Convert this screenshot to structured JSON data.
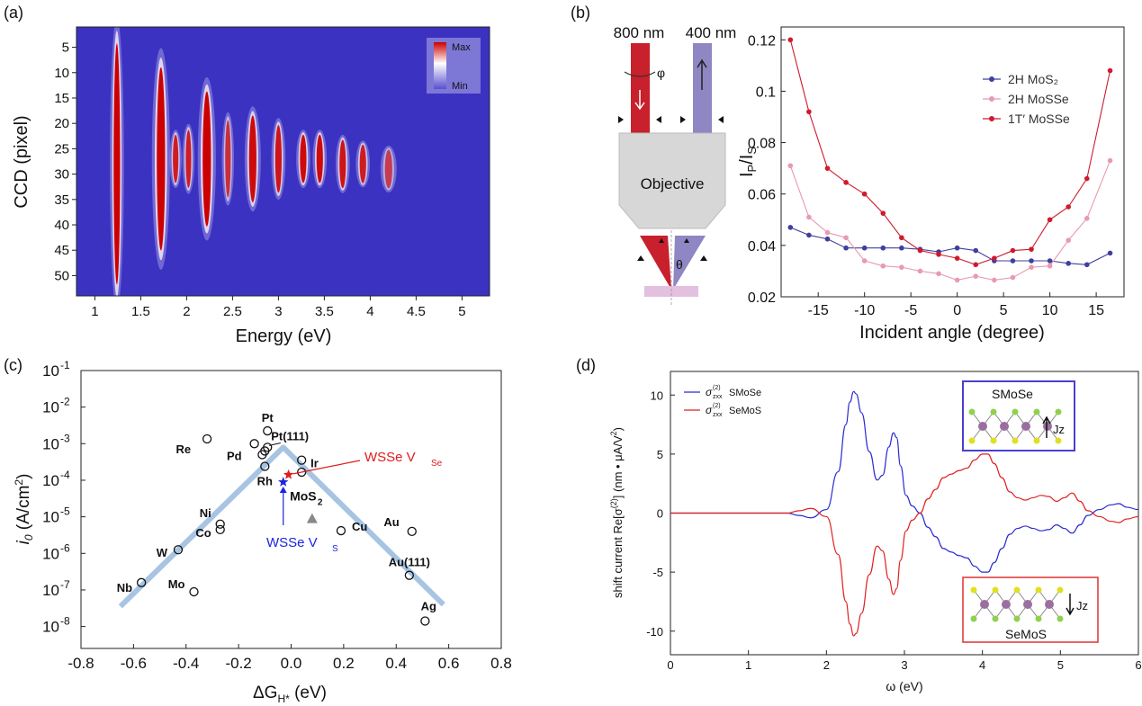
{
  "panels": {
    "a": {
      "label": "(a)"
    },
    "b": {
      "label": "(b)"
    },
    "c": {
      "label": "(c)"
    },
    "d": {
      "label": "(d)"
    }
  },
  "chart_data": [
    {
      "id": "a",
      "type": "heatmap",
      "xlabel": "Energy (eV)",
      "ylabel": "CCD (pixel)",
      "xlim": [
        0.8,
        5.3
      ],
      "ylim": [
        54,
        1
      ],
      "xticks": [
        "1",
        "1.5",
        "2",
        "2.5",
        "3",
        "3.5",
        "4",
        "4.5",
        "5"
      ],
      "yticks": [
        "5",
        "10",
        "15",
        "20",
        "25",
        "30",
        "35",
        "40",
        "45",
        "50"
      ],
      "colorbar": {
        "max": "Max",
        "min": "Min",
        "colors": [
          "#3b32c2",
          "#ffffff",
          "#cc0000"
        ]
      },
      "peaks": [
        {
          "e": 1.24,
          "c": 28,
          "w": 0.035,
          "h": 25,
          "level": 1.0
        },
        {
          "e": 1.72,
          "c": 27,
          "w": 0.045,
          "h": 19,
          "level": 1.0
        },
        {
          "e": 1.88,
          "c": 27,
          "w": 0.03,
          "h": 5,
          "level": 0.85
        },
        {
          "e": 2.02,
          "c": 27,
          "w": 0.03,
          "h": 6,
          "level": 0.85
        },
        {
          "e": 2.22,
          "c": 27,
          "w": 0.045,
          "h": 14,
          "level": 1.0
        },
        {
          "e": 2.45,
          "c": 27,
          "w": 0.03,
          "h": 8,
          "level": 0.75
        },
        {
          "e": 2.72,
          "c": 27,
          "w": 0.04,
          "h": 9,
          "level": 0.95
        },
        {
          "e": 3.0,
          "c": 27,
          "w": 0.035,
          "h": 7,
          "level": 0.9
        },
        {
          "e": 3.27,
          "c": 27,
          "w": 0.035,
          "h": 5,
          "level": 0.95
        },
        {
          "e": 3.45,
          "c": 27,
          "w": 0.035,
          "h": 5,
          "level": 0.95
        },
        {
          "e": 3.7,
          "c": 28,
          "w": 0.035,
          "h": 5,
          "level": 0.9
        },
        {
          "e": 3.92,
          "c": 28,
          "w": 0.035,
          "h": 4,
          "level": 0.85
        },
        {
          "e": 4.2,
          "c": 29,
          "w": 0.04,
          "h": 4,
          "level": 0.65
        }
      ]
    },
    {
      "id": "b",
      "type": "line",
      "xlabel": "Incident angle (degree)",
      "ylabel": "IP/IS",
      "xlim": [
        -19,
        18
      ],
      "ylim": [
        0.02,
        0.125
      ],
      "xticks": [
        "-15",
        "-10",
        "-5",
        "0",
        "5",
        "10",
        "15"
      ],
      "yticks": [
        "0.02",
        "0.04",
        "0.06",
        "0.08",
        "0.1",
        "0.12"
      ],
      "legend_position": "top-right",
      "x": [
        -18,
        -16,
        -14,
        -12,
        -10,
        -8,
        -6,
        -4,
        -2,
        0,
        2,
        4,
        6,
        8,
        10,
        12,
        14,
        16.5
      ],
      "series": [
        {
          "name": "2H MoS₂",
          "color": "#3f3f9e",
          "values": [
            0.047,
            0.044,
            0.0425,
            0.039,
            0.039,
            0.039,
            0.039,
            0.0385,
            0.0375,
            0.039,
            0.038,
            0.034,
            0.034,
            0.034,
            0.034,
            0.033,
            0.0325,
            0.037
          ]
        },
        {
          "name": "2H MoSSe",
          "color": "#e89ab0",
          "values": [
            0.071,
            0.051,
            0.045,
            0.043,
            0.034,
            0.032,
            0.0315,
            0.03,
            0.029,
            0.0265,
            0.028,
            0.0265,
            0.0275,
            0.0315,
            0.032,
            0.042,
            0.0505,
            0.073
          ]
        },
        {
          "name": "1T′ MoSSe",
          "color": "#cf1a2e",
          "values": [
            0.12,
            0.092,
            0.07,
            0.0645,
            0.06,
            0.0525,
            0.043,
            0.038,
            0.0365,
            0.035,
            0.0325,
            0.035,
            0.038,
            0.0385,
            0.05,
            0.055,
            0.066,
            0.108
          ]
        }
      ],
      "schematic": {
        "beam_in": "800 nm",
        "beam_out": "400 nm",
        "lens": "Objective",
        "angle_phi": "φ",
        "angle_theta": "θ"
      }
    },
    {
      "id": "c",
      "type": "scatter",
      "xlabel": "ΔGH* (eV)",
      "ylabel": "i0 (A/cm2)",
      "xlim": [
        -0.8,
        0.8
      ],
      "yscale": "log",
      "ylim": [
        -8.6,
        -1
      ],
      "xticks": [
        "-0.8",
        "-0.6",
        "-0.4",
        "-0.2",
        "0.0",
        "0.2",
        "0.4",
        "0.6",
        "0.8"
      ],
      "ytick_exponents": [
        -1,
        -2,
        -3,
        -4,
        -5,
        -6,
        -7,
        -8
      ],
      "volcano_line": [
        [
          -0.65,
          -7.45
        ],
        [
          -0.03,
          -3.1
        ],
        [
          0.58,
          -7.4
        ]
      ],
      "points": [
        {
          "name": "Pt",
          "x": -0.09,
          "y": -2.65
        },
        {
          "name": "Pt(111)",
          "x": -0.09,
          "y": -3.1
        },
        {
          "name": "Re",
          "x": -0.32,
          "y": -2.87
        },
        {
          "name": "Pd",
          "x": -0.14,
          "y": -3.0
        },
        {
          "name": "Rh",
          "x": -0.1,
          "y": -3.62
        },
        {
          "name": "",
          "x": -0.11,
          "y": -3.3
        },
        {
          "name": "",
          "x": -0.1,
          "y": -3.2
        },
        {
          "name": "Ir",
          "x": 0.04,
          "y": -3.45
        },
        {
          "name": "",
          "x": 0.04,
          "y": -3.78
        },
        {
          "name": "Ni",
          "x": -0.27,
          "y": -5.2
        },
        {
          "name": "Co",
          "x": -0.27,
          "y": -5.35
        },
        {
          "name": "W",
          "x": -0.43,
          "y": -5.9
        },
        {
          "name": "Mo",
          "x": -0.37,
          "y": -7.05
        },
        {
          "name": "Nb",
          "x": -0.57,
          "y": -6.8
        },
        {
          "name": "Cu",
          "x": 0.19,
          "y": -5.38
        },
        {
          "name": "Au",
          "x": 0.46,
          "y": -5.4
        },
        {
          "name": "Au(111)",
          "x": 0.45,
          "y": -6.6
        },
        {
          "name": "Ag",
          "x": 0.51,
          "y": -7.85
        }
      ],
      "special": [
        {
          "name": "MoS2",
          "x": 0.08,
          "y": -5.05,
          "marker": "triangle",
          "color": "#888888"
        },
        {
          "name": "WSSe VSe",
          "x": -0.01,
          "y": -3.85,
          "marker": "star",
          "color": "#e11b1b"
        },
        {
          "name": "WSSe VS",
          "x": -0.03,
          "y": -4.05,
          "marker": "star",
          "color": "#1b24e1"
        }
      ],
      "annotations": [
        "WSSe V",
        "Se",
        "WSSe V",
        "S",
        "MoS",
        "2"
      ]
    },
    {
      "id": "d",
      "type": "line",
      "xlabel": "ω (eV)",
      "ylabel": "shift current   Re[σ(2)]  (nm • μA/V²)",
      "xlim": [
        0,
        6
      ],
      "ylim": [
        -12,
        12
      ],
      "xticks": [
        "0",
        "1",
        "2",
        "3",
        "4",
        "5",
        "6"
      ],
      "yticks": [
        "10",
        "5",
        "0",
        "-5",
        "-10"
      ],
      "legend_position": "top-left",
      "x": [
        0,
        1.5,
        1.65,
        1.8,
        2.0,
        2.15,
        2.25,
        2.3,
        2.35,
        2.38,
        2.45,
        2.55,
        2.65,
        2.72,
        2.8,
        2.86,
        2.9,
        2.95,
        3.02,
        3.1,
        3.2,
        3.3,
        3.4,
        3.5,
        3.6,
        3.7,
        3.8,
        3.9,
        4.0,
        4.07,
        4.15,
        4.25,
        4.35,
        4.45,
        4.55,
        4.65,
        4.75,
        4.85,
        4.95,
        5.05,
        5.15,
        5.25,
        5.35,
        5.5,
        5.65,
        5.75,
        5.85,
        6.0
      ],
      "series": [
        {
          "name": "SMoSe",
          "legend_prefix": "σ(2)zxx",
          "color": "#2a2ad0",
          "values": [
            0,
            0,
            -0.2,
            -0.4,
            0.3,
            3.5,
            7.5,
            9.4,
            10.3,
            10.1,
            8.5,
            5.2,
            2.8,
            3.2,
            5.6,
            6.8,
            6.4,
            4.0,
            1.5,
            0.6,
            0,
            -1.2,
            -2.0,
            -3.0,
            -3.3,
            -3.6,
            -3.8,
            -4.5,
            -5.0,
            -5.0,
            -4.2,
            -3.0,
            -1.8,
            -1.3,
            -1.1,
            -1.3,
            -1.5,
            -1.4,
            -1.0,
            -1.3,
            -1.7,
            -1.0,
            -0.2,
            0.3,
            0.7,
            0.8,
            0.5,
            0.3
          ]
        },
        {
          "name": "SeMoS",
          "legend_prefix": "σ(2)zxx",
          "color": "#e02020",
          "values": [
            0,
            0,
            0.2,
            0.4,
            -0.3,
            -3.5,
            -7.5,
            -9.4,
            -10.4,
            -10.2,
            -8.5,
            -5.2,
            -2.8,
            -3.2,
            -5.6,
            -6.9,
            -6.4,
            -4.0,
            -1.5,
            -0.6,
            0,
            1.2,
            2.0,
            3.0,
            3.3,
            3.6,
            3.8,
            4.5,
            5.0,
            5.0,
            4.2,
            3.0,
            1.8,
            1.3,
            1.1,
            1.3,
            1.5,
            1.4,
            1.0,
            1.3,
            1.7,
            1.0,
            0.2,
            -0.3,
            -0.7,
            -0.8,
            -0.5,
            -0.3
          ]
        }
      ],
      "insets": [
        {
          "title": "SMoSe",
          "current": "Jz",
          "direction": "up"
        },
        {
          "title": "SeMoS",
          "current": "Jz",
          "direction": "down"
        }
      ]
    }
  ]
}
